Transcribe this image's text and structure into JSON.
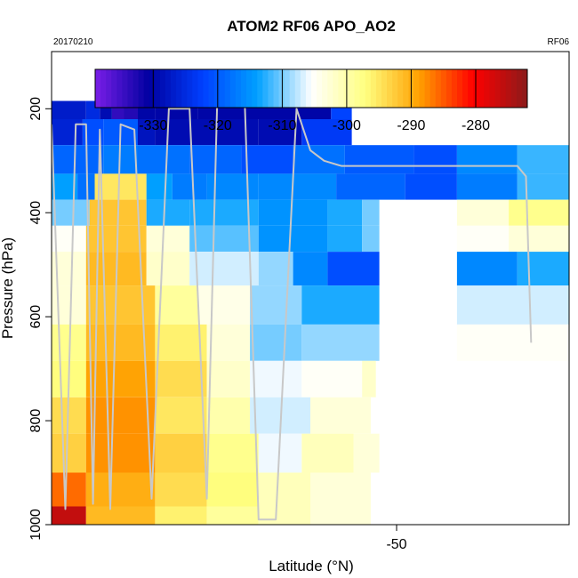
{
  "chart_data": {
    "type": "heatmap",
    "title": "ATOM2 RF06 APO_AO2",
    "subtitle_left": "20170210",
    "subtitle_right": "RF06",
    "xlabel": "Latitude (°N)",
    "ylabel": "Pressure (hPa)",
    "x_ticks": [
      "-50"
    ],
    "y_ticks": [
      "200",
      "400",
      "600",
      "800",
      "1000"
    ],
    "ylim": [
      1000,
      90
    ],
    "y_reversed": true,
    "grid": false,
    "colorbar": {
      "placement": "top inside plot",
      "range": [
        -339,
        -272
      ],
      "ticks": [
        "-330",
        "-320",
        "-310",
        "-300",
        "-290",
        "-280"
      ],
      "colors": [
        "#7a1ee8",
        "#0000a0",
        "#0040ff",
        "#00a0ff",
        "#ffffff",
        "#ffff80",
        "#ffa000",
        "#ff0000",
        "#8b1a1a"
      ]
    },
    "heatmap_rows": [
      {
        "pressure": 170,
        "cells": [
          [
            -64.4,
            -64.1,
            -335
          ],
          [
            -63.9,
            -63.6,
            -335
          ],
          [
            -63.2,
            -62.8,
            -335
          ]
        ]
      },
      {
        "pressure": 200,
        "cells": [
          [
            -70.0,
            -68.0,
            -327
          ],
          [
            -68.0,
            -67.2,
            -325
          ],
          [
            -67.2,
            -66.5,
            -329
          ],
          [
            -66.5,
            -65.8,
            -334
          ],
          [
            -65.8,
            -65.0,
            -333
          ],
          [
            -65.0,
            -64.0,
            -330
          ],
          [
            -64.0,
            -61.5,
            -330
          ],
          [
            -61.5,
            -55.8,
            -330
          ],
          [
            -55.8,
            -53.8,
            -330
          ],
          [
            -53.8,
            -52.6,
            -322
          ]
        ]
      },
      {
        "pressure": 240,
        "cells": [
          [
            -70.0,
            -68.2,
            -326
          ],
          [
            -68.2,
            -67.0,
            -321
          ],
          [
            -67.0,
            -65.0,
            -320
          ],
          [
            -65.0,
            -64.0,
            -328
          ],
          [
            -64.0,
            -58.0,
            -329
          ],
          [
            -58.0,
            -55.5,
            -329
          ],
          [
            -55.5,
            -52.6,
            -323
          ]
        ]
      },
      {
        "pressure": 300,
        "cells": [
          [
            -70.0,
            -67.0,
            -319
          ],
          [
            -67.0,
            -65.0,
            -317
          ],
          [
            -65.0,
            -62.0,
            -318
          ],
          [
            -62.0,
            -59.0,
            -319
          ],
          [
            -59.0,
            -56.0,
            -321
          ],
          [
            -56.0,
            -53.0,
            -318
          ],
          [
            -53.0,
            -49.0,
            -320
          ],
          [
            -49.0,
            -46.5,
            -321
          ],
          [
            -46.5,
            -43.0,
            -316
          ],
          [
            -43.0,
            -40.0,
            -312
          ]
        ]
      },
      {
        "pressure": 350,
        "cells": [
          [
            -70.0,
            -68.5,
            -314
          ],
          [
            -68.5,
            -67.5,
            -318
          ],
          [
            -67.5,
            -64.5,
            -295
          ],
          [
            -64.5,
            -63.0,
            -314
          ],
          [
            -63.0,
            -61.0,
            -317
          ],
          [
            -61.0,
            -58.0,
            -316
          ],
          [
            -58.0,
            -53.5,
            -316
          ],
          [
            -53.5,
            -49.5,
            -319
          ],
          [
            -49.5,
            -46.5,
            -321
          ],
          [
            -46.5,
            -43.0,
            -317
          ],
          [
            -43.0,
            -40.0,
            -312
          ]
        ]
      },
      {
        "pressure": 400,
        "cells": [
          [
            -70.0,
            -67.8,
            -310
          ],
          [
            -67.8,
            -64.5,
            -292
          ],
          [
            -64.5,
            -62.0,
            -313
          ],
          [
            -62.0,
            -58.0,
            -313
          ],
          [
            -58.0,
            -54.0,
            -315
          ],
          [
            -54.0,
            -52.0,
            -313
          ],
          [
            -52.0,
            -51.0,
            -310
          ],
          [
            -46.5,
            -43.5,
            -303
          ],
          [
            -43.5,
            -40.0,
            -298
          ]
        ]
      },
      {
        "pressure": 450,
        "cells": [
          [
            -70.0,
            -68.0,
            -305
          ],
          [
            -68.0,
            -64.5,
            -292
          ],
          [
            -64.5,
            -62.0,
            -303
          ],
          [
            -62.0,
            -58.0,
            -311
          ],
          [
            -58.0,
            -54.0,
            -315
          ],
          [
            -54.0,
            -52.0,
            -313
          ],
          [
            -52.0,
            -51.0,
            -310
          ],
          [
            -46.5,
            -43.5,
            -305
          ],
          [
            -43.5,
            -40.0,
            -303
          ]
        ]
      },
      {
        "pressure": 500,
        "cells": [
          [
            -70.0,
            -68.0,
            -303
          ],
          [
            -68.0,
            -64.5,
            -291
          ],
          [
            -64.5,
            -62.0,
            -302
          ],
          [
            -62.0,
            -58.0,
            -307
          ],
          [
            -58.0,
            -56.0,
            -309
          ],
          [
            -56.0,
            -54.0,
            -316
          ],
          [
            -54.0,
            -51.0,
            -321
          ],
          [
            -46.5,
            -43.0,
            -316
          ],
          [
            -43.0,
            -40.0,
            -313
          ]
        ]
      },
      {
        "pressure": 580,
        "cells": [
          [
            -70.0,
            -68.0,
            -303
          ],
          [
            -68.0,
            -64.0,
            -292
          ],
          [
            -64.0,
            -61.5,
            -299
          ],
          [
            -61.5,
            -58.5,
            -304
          ],
          [
            -58.5,
            -55.5,
            -309
          ],
          [
            -55.5,
            -51.0,
            -313
          ],
          [
            -46.5,
            -40.0,
            -307
          ]
        ]
      },
      {
        "pressure": 650,
        "cells": [
          [
            -70.0,
            -68.0,
            -298
          ],
          [
            -68.0,
            -64.0,
            -291
          ],
          [
            -64.0,
            -61.0,
            -296
          ],
          [
            -61.0,
            -58.5,
            -303
          ],
          [
            -58.5,
            -55.5,
            -310
          ],
          [
            -55.5,
            -51.0,
            -309
          ],
          [
            -46.5,
            -40.0,
            -305
          ]
        ]
      },
      {
        "pressure": 720,
        "cells": [
          [
            -70.0,
            -68.0,
            -297
          ],
          [
            -68.0,
            -64.0,
            -289
          ],
          [
            -64.0,
            -61.0,
            -294
          ],
          [
            -61.0,
            -58.5,
            -302
          ],
          [
            -58.5,
            -55.5,
            -306
          ],
          [
            -55.5,
            -52.0,
            -305
          ],
          [
            -52.0,
            -51.2,
            -302
          ]
        ]
      },
      {
        "pressure": 790,
        "cells": [
          [
            -70.0,
            -68.0,
            -294
          ],
          [
            -68.0,
            -64.0,
            -288
          ],
          [
            -64.0,
            -61.0,
            -295
          ],
          [
            -61.0,
            -58.5,
            -300
          ],
          [
            -58.5,
            -55.0,
            -307
          ],
          [
            -55.0,
            -51.5,
            -303
          ]
        ]
      },
      {
        "pressure": 860,
        "cells": [
          [
            -70.0,
            -68.0,
            -293
          ],
          [
            -68.0,
            -64.0,
            -288
          ],
          [
            -64.0,
            -61.0,
            -293
          ],
          [
            -61.0,
            -58.0,
            -298
          ],
          [
            -58.0,
            -55.5,
            -306
          ],
          [
            -55.5,
            -52.5,
            -301
          ],
          [
            -52.5,
            -51.0,
            -303
          ]
        ]
      },
      {
        "pressure": 940,
        "cells": [
          [
            -70.0,
            -68.0,
            -286
          ],
          [
            -68.0,
            -64.0,
            -290
          ],
          [
            -64.0,
            -61.0,
            -294
          ],
          [
            -61.0,
            -58.0,
            -297
          ],
          [
            -58.0,
            -55.0,
            -301
          ],
          [
            -55.0,
            -51.5,
            -303
          ]
        ]
      },
      {
        "pressure": 990,
        "cells": [
          [
            -70.0,
            -68.0,
            -276
          ],
          [
            -68.0,
            -64.0,
            -291
          ],
          [
            -64.0,
            -61.0,
            -296
          ],
          [
            -61.0,
            -58.0,
            -299
          ],
          [
            -58.0,
            -55.0,
            -301
          ],
          [
            -55.0,
            -51.5,
            -303
          ]
        ]
      }
    ],
    "flight_track": {
      "lat": [
        -70.0,
        -69.2,
        -68.6,
        -68.0,
        -67.6,
        -67.2,
        -66.6,
        -66.0,
        -65.2,
        -64.2,
        -63.2,
        -62.0,
        -61.0,
        -60.4,
        -59.6,
        -58.8,
        -58.0,
        -57.0,
        -55.8,
        -55.0,
        -54.2,
        -53.2,
        -52.0,
        -50.6,
        -49.8,
        -48.0,
        -47.0,
        -46.0,
        -45.0,
        -44.0,
        -43.0,
        -42.5,
        -42.2
      ],
      "pressure": [
        230,
        970,
        230,
        230,
        960,
        240,
        970,
        230,
        240,
        950,
        200,
        200,
        950,
        190,
        190,
        190,
        990,
        990,
        200,
        280,
        300,
        310,
        310,
        310,
        310,
        310,
        310,
        310,
        310,
        310,
        310,
        330,
        650
      ]
    }
  }
}
